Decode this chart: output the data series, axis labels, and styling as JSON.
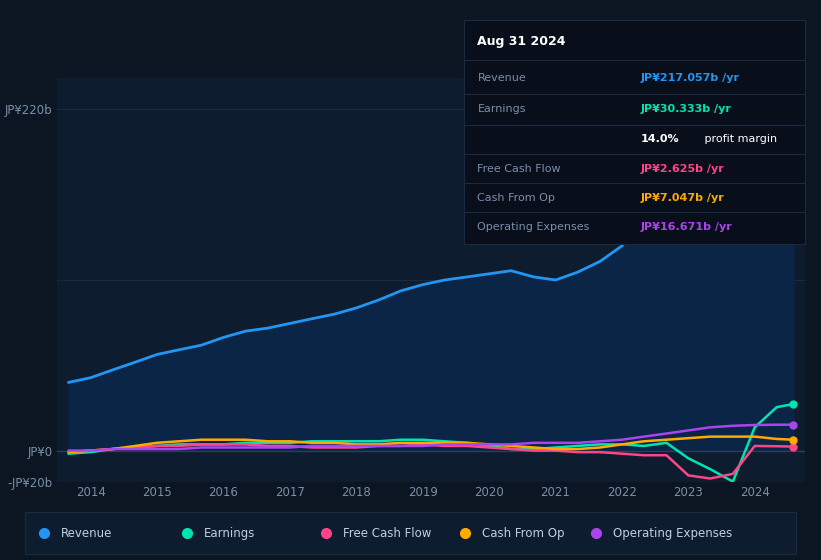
{
  "bg_color": "#0b1622",
  "plot_bg_color": "#0e1c2f",
  "grid_color": "#1a2a40",
  "years": [
    2013.67,
    2014.0,
    2014.33,
    2014.67,
    2015.0,
    2015.33,
    2015.67,
    2016.0,
    2016.33,
    2016.67,
    2017.0,
    2017.33,
    2017.67,
    2018.0,
    2018.33,
    2018.67,
    2019.0,
    2019.33,
    2019.67,
    2020.0,
    2020.33,
    2020.67,
    2021.0,
    2021.33,
    2021.67,
    2022.0,
    2022.33,
    2022.67,
    2023.0,
    2023.33,
    2023.67,
    2024.0,
    2024.33,
    2024.58
  ],
  "revenue": [
    44,
    47,
    52,
    57,
    62,
    65,
    68,
    73,
    77,
    79,
    82,
    85,
    88,
    92,
    97,
    103,
    107,
    110,
    112,
    114,
    116,
    112,
    110,
    115,
    122,
    132,
    148,
    162,
    175,
    188,
    200,
    208,
    215,
    217
  ],
  "earnings": [
    -2,
    -1,
    1,
    2,
    3,
    4,
    4,
    4,
    5,
    5,
    5,
    6,
    6,
    6,
    6,
    7,
    7,
    6,
    5,
    3,
    1,
    1,
    2,
    3,
    4,
    4,
    3,
    5,
    -5,
    -12,
    -20,
    15,
    28,
    30
  ],
  "free_cash_flow": [
    -1,
    0,
    1,
    2,
    3,
    3,
    4,
    4,
    4,
    3,
    3,
    2,
    2,
    2,
    3,
    3,
    4,
    3,
    3,
    2,
    1,
    0,
    0,
    -1,
    -1,
    -2,
    -3,
    -3,
    -16,
    -18,
    -15,
    3,
    2.8,
    2.6
  ],
  "cash_from_op": [
    -1,
    0,
    1,
    3,
    5,
    6,
    7,
    7,
    7,
    6,
    6,
    5,
    5,
    4,
    4,
    5,
    5,
    5,
    5,
    4,
    3,
    2,
    1,
    1,
    2,
    4,
    6,
    7,
    8,
    9,
    9,
    9,
    7.5,
    7
  ],
  "operating_expenses": [
    0,
    0,
    1,
    1,
    1,
    1,
    2,
    2,
    2,
    2,
    2,
    3,
    3,
    3,
    3,
    3,
    3,
    4,
    4,
    4,
    4,
    5,
    5,
    5,
    6,
    7,
    9,
    11,
    13,
    15,
    16,
    16.5,
    16.7,
    16.7
  ],
  "revenue_color": "#2196f3",
  "revenue_fill_color": "#0a2545",
  "earnings_color": "#00e5b0",
  "fcf_color": "#ff4488",
  "cashop_color": "#ffaa00",
  "opex_color": "#aa44ee",
  "ylim_min": -20,
  "ylim_max": 240,
  "xlim_min": 2013.5,
  "xlim_max": 2024.75,
  "yticks": [
    220,
    0,
    -20
  ],
  "ytick_labels": [
    "JP¥220b",
    "JP¥0",
    "-JP¥20b"
  ],
  "xticks": [
    2014,
    2015,
    2016,
    2017,
    2018,
    2019,
    2020,
    2021,
    2022,
    2023,
    2024
  ],
  "info_date": "Aug 31 2024",
  "info_rows": [
    {
      "label": "Revenue",
      "value": "JP¥217.057b /yr",
      "color": "#2196f3"
    },
    {
      "label": "Earnings",
      "value": "JP¥30.333b /yr",
      "color": "#00e5b0"
    },
    {
      "label": "",
      "value": "14.0% profit margin",
      "color": "#ffffff"
    },
    {
      "label": "Free Cash Flow",
      "value": "JP¥2.625b /yr",
      "color": "#ff4488"
    },
    {
      "label": "Cash From Op",
      "value": "JP¥7.047b /yr",
      "color": "#ffaa00"
    },
    {
      "label": "Operating Expenses",
      "value": "JP¥16.671b /yr",
      "color": "#aa44ee"
    }
  ],
  "legend_items": [
    {
      "label": "Revenue",
      "color": "#2196f3"
    },
    {
      "label": "Earnings",
      "color": "#00e5b0"
    },
    {
      "label": "Free Cash Flow",
      "color": "#ff4488"
    },
    {
      "label": "Cash From Op",
      "color": "#ffaa00"
    },
    {
      "label": "Operating Expenses",
      "color": "#aa44ee"
    }
  ]
}
